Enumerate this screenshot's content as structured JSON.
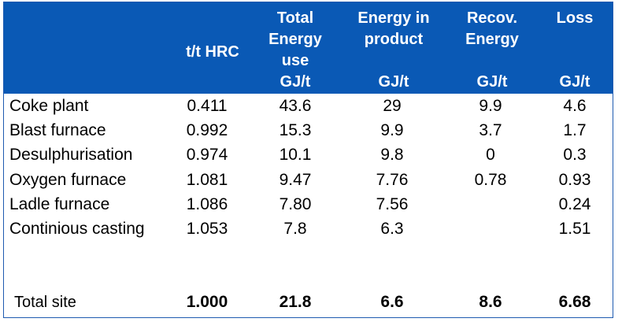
{
  "header": {
    "columns": [
      {
        "key": "thrc",
        "label_lines": [
          "t/t HRC"
        ],
        "unit": ""
      },
      {
        "key": "total",
        "label_lines": [
          "Total",
          "Energy",
          "use"
        ],
        "unit": "GJ/t"
      },
      {
        "key": "product",
        "label_lines": [
          "Energy in",
          "product"
        ],
        "unit": "GJ/t"
      },
      {
        "key": "recov",
        "label_lines": [
          "Recov.",
          "Energy"
        ],
        "unit": "GJ/t"
      },
      {
        "key": "loss",
        "label_lines": [
          "Loss"
        ],
        "unit": "GJ/t"
      }
    ]
  },
  "rows": [
    {
      "label": "Coke plant",
      "values": [
        "0.411",
        "43.6",
        "29",
        "9.9",
        "4.6"
      ]
    },
    {
      "label": "Blast furnace",
      "values": [
        "0.992",
        "15.3",
        "9.9",
        "3.7",
        "1.7"
      ]
    },
    {
      "label": "Desulphurisation",
      "values": [
        "0.974",
        "10.1",
        "9.8",
        "0",
        "0.3"
      ]
    },
    {
      "label": "Oxygen furnace",
      "values": [
        "1.081",
        "9.47",
        "7.76",
        "0.78",
        "0.93"
      ]
    },
    {
      "label": "Ladle furnace",
      "values": [
        "1.086",
        "7.80",
        "7.56",
        "",
        "0.24"
      ]
    },
    {
      "label": "Continious casting",
      "values": [
        "1.053",
        "7.8",
        "6.3",
        "",
        "1.51"
      ]
    }
  ],
  "total": {
    "label": "Total site",
    "values": [
      "1.000",
      "21.8",
      "6.6",
      "8.6",
      "6.68"
    ]
  },
  "colors": {
    "header_bg": "#0a59b5",
    "header_text": "#ffffff",
    "border": "#1f5bb0"
  }
}
